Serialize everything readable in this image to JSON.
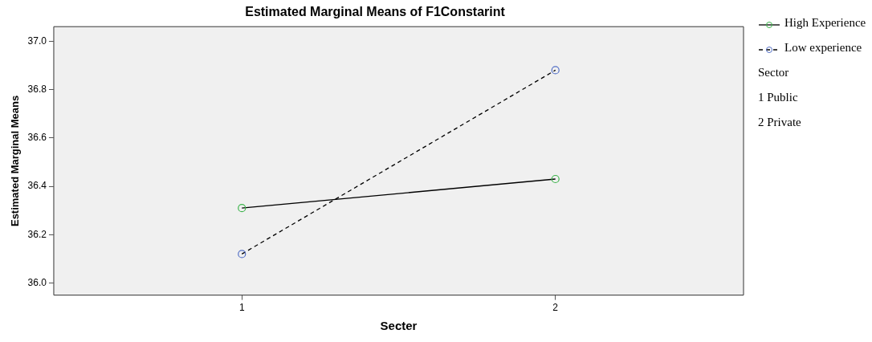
{
  "chart_data": {
    "type": "line",
    "title": "Estimated Marginal Means of F1Constarint",
    "xlabel": "Secter",
    "ylabel": "Estimated Marginal Means",
    "x": [
      1,
      2
    ],
    "xlim": [
      0.4,
      2.6
    ],
    "xticks": [
      1,
      2
    ],
    "ylim": [
      35.95,
      37.06
    ],
    "yticks": [
      {
        "value": 36,
        "label": "36.0"
      },
      {
        "value": 36.2,
        "label": "36.2"
      },
      {
        "value": 36.4,
        "label": "36.4"
      },
      {
        "value": 36.6,
        "label": "36.6"
      },
      {
        "value": 36.8,
        "label": "36.8"
      },
      {
        "value": 37,
        "label": "37.0"
      }
    ],
    "series": [
      {
        "name": "High Experience",
        "color": "#3cb44b",
        "values": [
          36.31,
          36.43
        ],
        "line_style": "solid"
      },
      {
        "name": "Low experience",
        "color": "#5470c6",
        "values": [
          36.12,
          36.88
        ],
        "line_style": "dashed"
      }
    ],
    "marker": "circle",
    "grid": false,
    "legend": "right",
    "annotations": [
      "Sector",
      "1 Public",
      "2 Private"
    ]
  }
}
